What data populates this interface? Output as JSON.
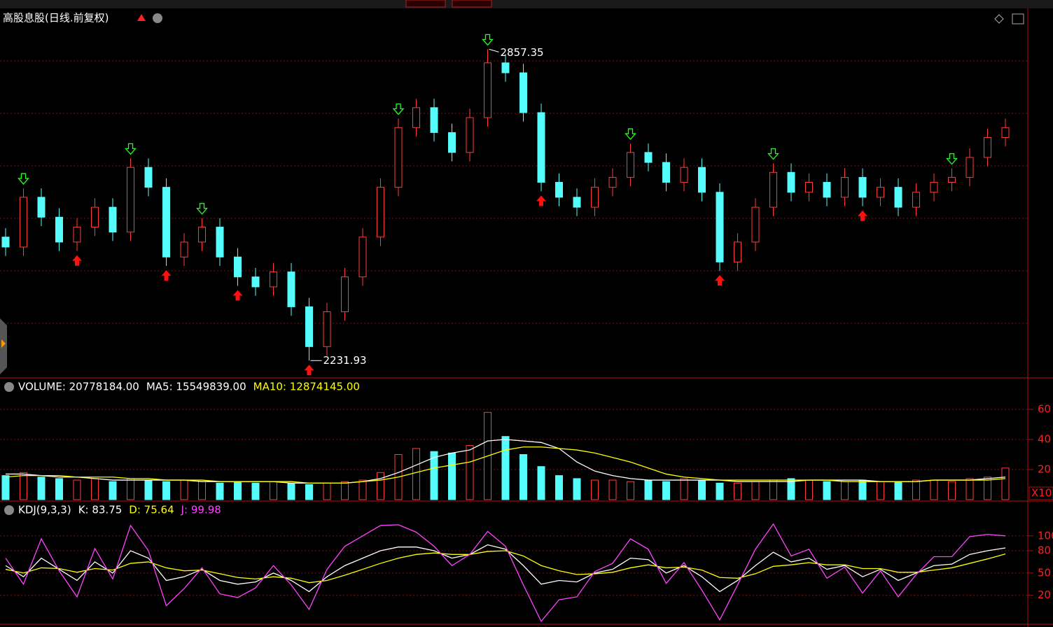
{
  "chart_data": [
    {
      "type": "candlestick",
      "title": "高股息股(日线.前复权)",
      "open": [
        2480,
        2460,
        2560,
        2520,
        2470,
        2500,
        2540,
        2490,
        2620,
        2580,
        2440,
        2470,
        2500,
        2440,
        2400,
        2380,
        2410,
        2340,
        2260,
        2330,
        2400,
        2480,
        2580,
        2700,
        2740,
        2690,
        2650,
        2720,
        2830,
        2810,
        2730,
        2590,
        2560,
        2540,
        2580,
        2600,
        2650,
        2630,
        2590,
        2620,
        2570,
        2430,
        2470,
        2540,
        2610,
        2570,
        2590,
        2560,
        2600,
        2560,
        2580,
        2540,
        2570,
        2590,
        2600,
        2640,
        2680
      ],
      "high": [
        2498,
        2578,
        2578,
        2538,
        2518,
        2558,
        2558,
        2638,
        2638,
        2598,
        2488,
        2518,
        2518,
        2458,
        2418,
        2428,
        2428,
        2358,
        2348,
        2418,
        2498,
        2598,
        2718,
        2758,
        2758,
        2708,
        2738,
        2857.35,
        2848,
        2828,
        2748,
        2608,
        2578,
        2598,
        2618,
        2668,
        2668,
        2648,
        2638,
        2638,
        2588,
        2488,
        2558,
        2628,
        2628,
        2608,
        2608,
        2618,
        2618,
        2598,
        2598,
        2588,
        2608,
        2618,
        2658,
        2698,
        2718
      ],
      "low": [
        2442,
        2442,
        2502,
        2452,
        2452,
        2482,
        2472,
        2472,
        2562,
        2422,
        2422,
        2452,
        2422,
        2382,
        2362,
        2362,
        2322,
        2231.93,
        2242,
        2312,
        2382,
        2462,
        2562,
        2682,
        2672,
        2632,
        2632,
        2702,
        2792,
        2712,
        2572,
        2542,
        2522,
        2522,
        2562,
        2582,
        2612,
        2572,
        2572,
        2552,
        2412,
        2412,
        2452,
        2522,
        2552,
        2552,
        2542,
        2542,
        2542,
        2542,
        2522,
        2522,
        2552,
        2572,
        2582,
        2622,
        2662
      ],
      "close": [
        2460,
        2560,
        2520,
        2470,
        2500,
        2540,
        2490,
        2620,
        2580,
        2440,
        2470,
        2500,
        2440,
        2400,
        2380,
        2410,
        2340,
        2260,
        2330,
        2400,
        2480,
        2580,
        2700,
        2740,
        2690,
        2650,
        2720,
        2830,
        2810,
        2730,
        2590,
        2560,
        2540,
        2580,
        2600,
        2650,
        2630,
        2590,
        2620,
        2570,
        2430,
        2470,
        2540,
        2610,
        2570,
        2590,
        2560,
        2600,
        2560,
        2580,
        2540,
        2570,
        2590,
        2600,
        2640,
        2680,
        2700
      ],
      "up_color": "#ff3c3c",
      "down_color": "#54fcfc",
      "ylim": [
        2200,
        2900
      ],
      "buy_signals": [
        4,
        9,
        13,
        17,
        30,
        40,
        48
      ],
      "sell_signals": [
        1,
        7,
        11,
        22,
        27,
        35,
        43,
        53
      ]
    },
    {
      "type": "volume",
      "title": "VOLUME: 20778184.00",
      "values": [
        16,
        18,
        15,
        14,
        13,
        14,
        12,
        14,
        13,
        12,
        13,
        12,
        11,
        12,
        11,
        12,
        11,
        10,
        11,
        12,
        13,
        18,
        30,
        34,
        32,
        31,
        36,
        58,
        42,
        30,
        22,
        16,
        14,
        13,
        13,
        12,
        13,
        12,
        14,
        13,
        11,
        11,
        12,
        13,
        14,
        13,
        12,
        12,
        13,
        12,
        12,
        13,
        13,
        12,
        14,
        15,
        21
      ],
      "series": [
        {
          "name": "MA5: 15549839.00",
          "color": "#ffffff",
          "values": [
            17,
            17,
            16,
            15,
            15,
            14,
            13,
            13,
            13,
            13,
            13,
            12,
            12,
            12,
            12,
            12,
            11,
            11,
            11,
            11,
            12,
            14,
            18,
            23,
            28,
            31,
            33,
            39,
            40,
            39,
            38,
            34,
            25,
            19,
            16,
            14,
            13,
            13,
            13,
            13,
            13,
            12,
            12,
            12,
            12,
            13,
            13,
            13,
            13,
            12,
            12,
            12,
            13,
            13,
            13,
            14,
            15
          ]
        },
        {
          "name": "MA10: 12874145.00",
          "color": "#ffff00",
          "values": [
            15,
            16,
            16,
            16,
            15,
            15,
            15,
            14,
            14,
            13,
            13,
            13,
            12,
            12,
            12,
            12,
            12,
            11,
            11,
            11,
            12,
            13,
            15,
            18,
            21,
            23,
            25,
            29,
            33,
            35,
            35,
            34,
            33,
            31,
            28,
            25,
            21,
            17,
            15,
            14,
            13,
            13,
            13,
            13,
            13,
            13,
            13,
            12,
            12,
            12,
            12,
            12,
            13,
            13,
            13,
            13,
            14
          ]
        }
      ],
      "ylim": [
        0,
        80
      ],
      "yticks": [
        20,
        40,
        60
      ],
      "unit_label": "X10"
    },
    {
      "type": "kdj",
      "title": "KDJ(9,3,3)",
      "series": [
        {
          "name": "K: 83.75",
          "color": "#ffffff",
          "values": [
            60,
            45,
            70,
            55,
            40,
            65,
            50,
            80,
            70,
            40,
            45,
            55,
            40,
            35,
            38,
            50,
            40,
            25,
            45,
            60,
            70,
            80,
            85,
            85,
            80,
            70,
            75,
            88,
            82,
            60,
            35,
            40,
            38,
            50,
            55,
            70,
            68,
            50,
            60,
            45,
            25,
            40,
            60,
            78,
            65,
            70,
            55,
            60,
            45,
            55,
            40,
            50,
            60,
            62,
            75,
            80,
            83.75
          ]
        },
        {
          "name": "D: 75.64",
          "color": "#ffff00",
          "values": [
            55,
            50,
            57,
            56,
            51,
            56,
            54,
            63,
            65,
            57,
            53,
            54,
            49,
            44,
            42,
            45,
            43,
            37,
            40,
            47,
            55,
            63,
            70,
            75,
            77,
            75,
            75,
            79,
            80,
            73,
            60,
            53,
            48,
            49,
            51,
            57,
            61,
            57,
            58,
            54,
            44,
            43,
            49,
            59,
            61,
            64,
            61,
            61,
            56,
            56,
            51,
            51,
            54,
            57,
            63,
            69,
            75.64
          ]
        },
        {
          "name": "J: 99.98",
          "color": "#ff44ff",
          "values": [
            70,
            35,
            96,
            53,
            18,
            83,
            42,
            114,
            80,
            6,
            29,
            57,
            22,
            17,
            30,
            60,
            34,
            1,
            55,
            86,
            100,
            114,
            115,
            105,
            86,
            60,
            75,
            106,
            86,
            34,
            -15,
            14,
            18,
            52,
            63,
            96,
            82,
            36,
            64,
            27,
            -13,
            34,
            82,
            116,
            73,
            82,
            43,
            58,
            23,
            53,
            18,
            48,
            72,
            72,
            99,
            102,
            99.98
          ]
        }
      ],
      "ylim": [
        -17,
        145
      ],
      "yticks": [
        20,
        50,
        80,
        100
      ]
    }
  ]
}
